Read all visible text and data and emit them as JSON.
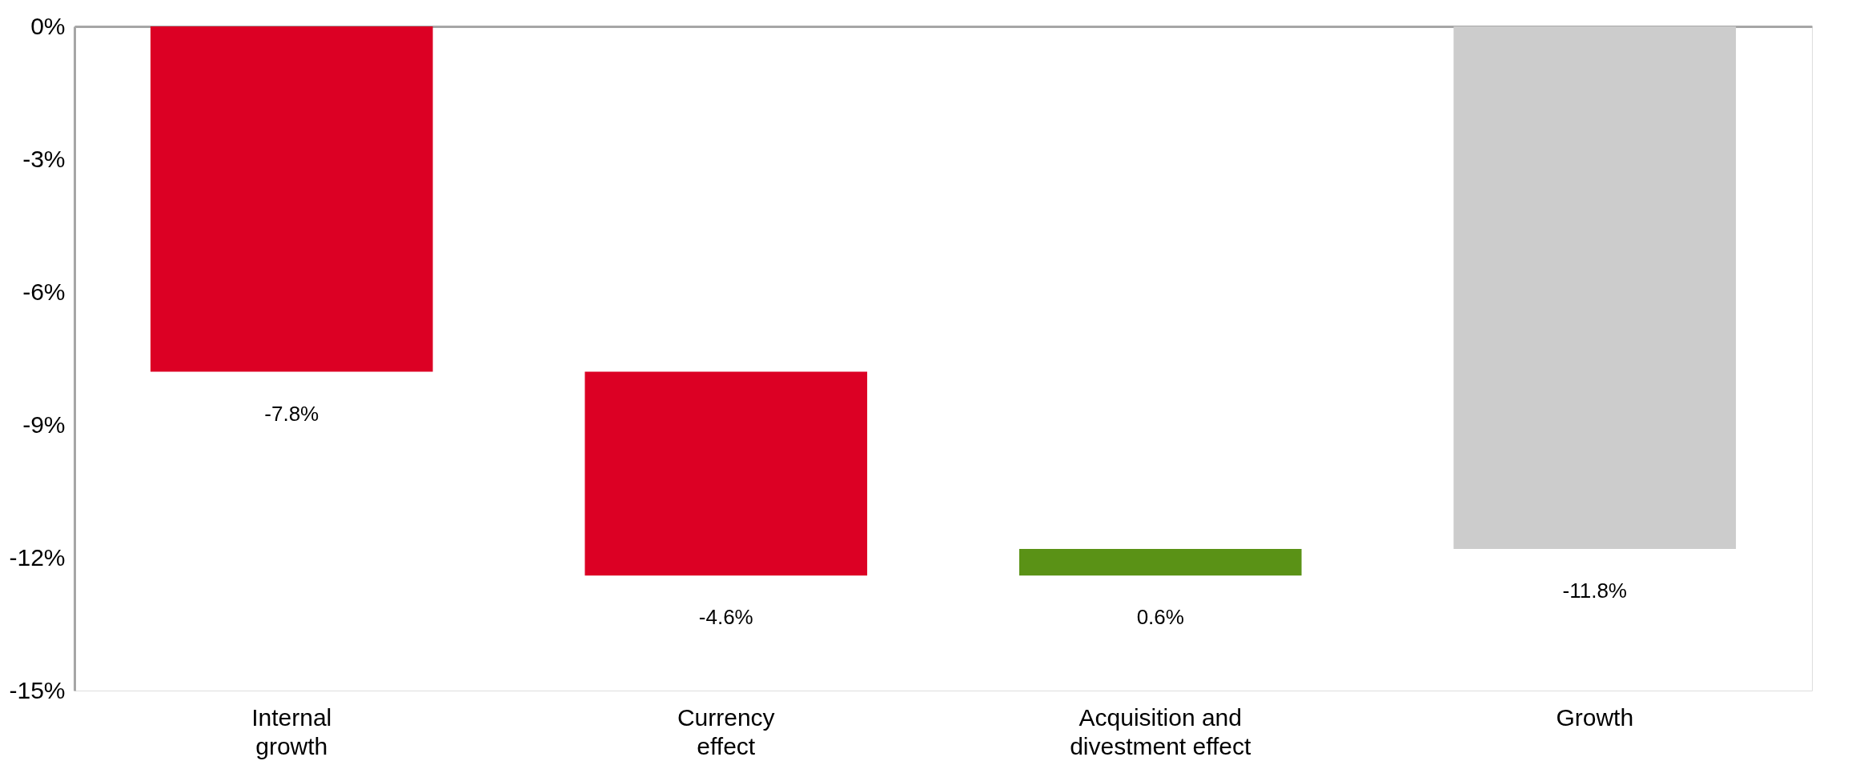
{
  "chart_data": {
    "type": "bar",
    "categories": [
      "Internal\ngrowth",
      "Currency\neffect",
      "Acquisition and\ndivestment effect",
      "Growth"
    ],
    "values": [
      -7.8,
      -4.6,
      0.6,
      -11.8
    ],
    "base": [
      0,
      -7.8,
      -12.4,
      0
    ],
    "colors": [
      "#dc0024",
      "#dc0024",
      "#5a9216",
      "#cccccc"
    ],
    "value_labels": [
      "-7.8%",
      "-4.6%",
      "0.6%",
      "-11.8%"
    ],
    "ylim": [
      -15,
      0
    ],
    "yticks": [
      {
        "value": -15,
        "label": "-15%"
      },
      {
        "value": -12,
        "label": "-12%"
      },
      {
        "value": -9,
        "label": "-9%"
      },
      {
        "value": -6,
        "label": "-6%"
      },
      {
        "value": -3,
        "label": "-3%"
      },
      {
        "value": 0,
        "label": "0%"
      }
    ],
    "grid": false
  }
}
